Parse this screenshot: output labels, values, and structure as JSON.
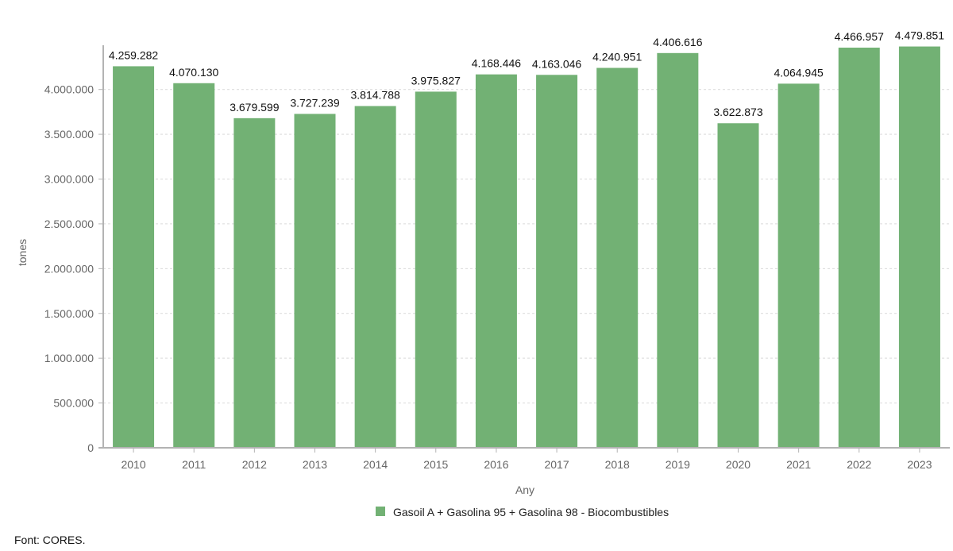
{
  "chart_data": {
    "type": "bar",
    "categories": [
      "2010",
      "2011",
      "2012",
      "2013",
      "2014",
      "2015",
      "2016",
      "2017",
      "2018",
      "2019",
      "2020",
      "2021",
      "2022",
      "2023"
    ],
    "series": [
      {
        "name": "Gasoil A + Gasolina 95 + Gasolina 98 - Biocombustibles",
        "values": [
          4259282,
          4070130,
          3679599,
          3727239,
          3814788,
          3975827,
          4168446,
          4163046,
          4240951,
          4406616,
          3622873,
          4064945,
          4466957,
          4479851
        ],
        "labels": [
          "4.259.282",
          "4.070.130",
          "3.679.599",
          "3.727.239",
          "3.814.788",
          "3.975.827",
          "4.168.446",
          "4.163.046",
          "4.240.951",
          "4.406.616",
          "3.622.873",
          "4.064.945",
          "4.466.957",
          "4.479.851"
        ],
        "color": "#72b174"
      }
    ],
    "xlabel": "Any",
    "ylabel": "tones",
    "ylim": [
      0,
      4600000
    ],
    "yticks": [
      0,
      500000,
      1000000,
      1500000,
      2000000,
      2500000,
      3000000,
      3500000,
      4000000
    ],
    "ytick_labels": [
      "0",
      "500.000",
      "1.000.000",
      "1.500.000",
      "2.000.000",
      "2.500.000",
      "3.000.000",
      "3.500.000",
      "4.000.000"
    ],
    "grid": true,
    "legend_position": "bottom-center"
  },
  "source": "Font: CORES."
}
